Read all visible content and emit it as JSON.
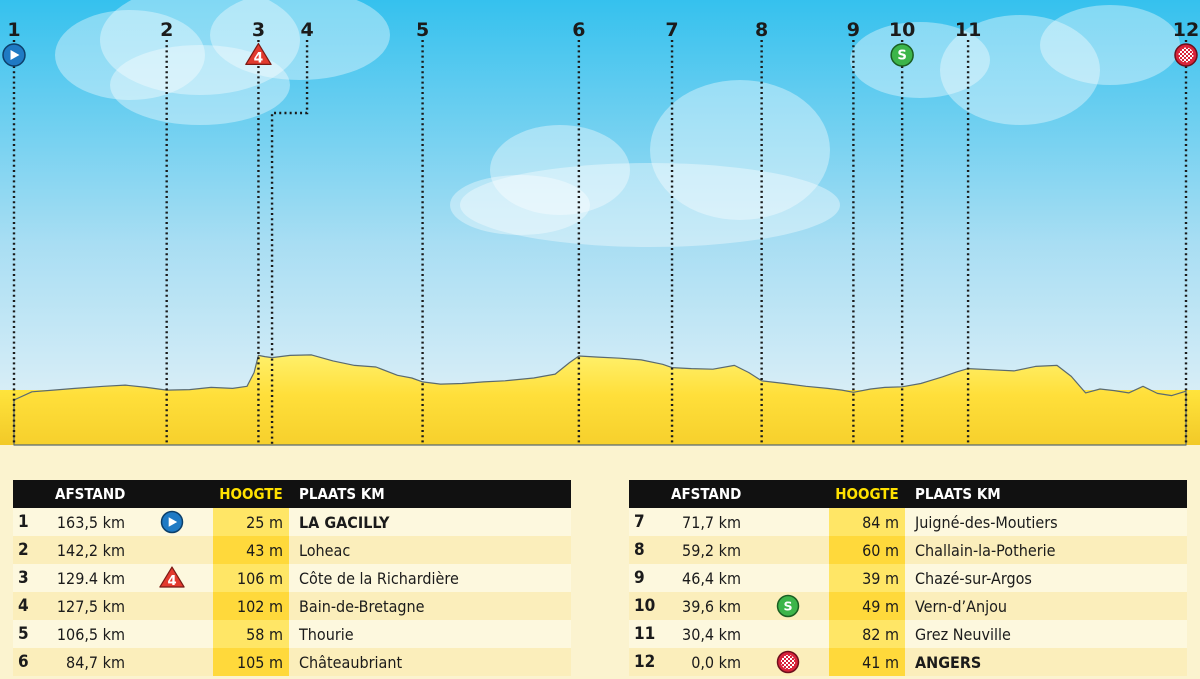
{
  "chart_data": {
    "type": "area",
    "title": "",
    "xlabel": "",
    "ylabel": "",
    "x_unit": "km",
    "xlim": [
      163.5,
      0
    ],
    "ylim": [
      0,
      320
    ],
    "markers": [
      {
        "num": "1",
        "km": 163.5,
        "icon": "start-icon"
      },
      {
        "num": "2",
        "km": 142.2,
        "icon": ""
      },
      {
        "num": "3",
        "km": 129.4,
        "icon": "climb-cat4-icon",
        "climb_cat": "4"
      },
      {
        "num": "4",
        "km": 127.5,
        "icon": ""
      },
      {
        "num": "5",
        "km": 106.5,
        "icon": ""
      },
      {
        "num": "6",
        "km": 84.7,
        "icon": ""
      },
      {
        "num": "7",
        "km": 71.7,
        "icon": ""
      },
      {
        "num": "8",
        "km": 59.2,
        "icon": ""
      },
      {
        "num": "9",
        "km": 46.4,
        "icon": ""
      },
      {
        "num": "10",
        "km": 39.6,
        "icon": "sprint-icon",
        "sprint_label": "S"
      },
      {
        "num": "11",
        "km": 30.4,
        "icon": ""
      },
      {
        "num": "12",
        "km": 0.0,
        "icon": "finish-icon"
      }
    ],
    "profile": [
      [
        163.5,
        25
      ],
      [
        161,
        40
      ],
      [
        158,
        43
      ],
      [
        155,
        46
      ],
      [
        151,
        50
      ],
      [
        148,
        52
      ],
      [
        145,
        48
      ],
      [
        142.2,
        43
      ],
      [
        139,
        44
      ],
      [
        136,
        48
      ],
      [
        133,
        46
      ],
      [
        131,
        50
      ],
      [
        130,
        75
      ],
      [
        129.4,
        106
      ],
      [
        128.5,
        104
      ],
      [
        127.5,
        102
      ],
      [
        125,
        106
      ],
      [
        122,
        107
      ],
      [
        119,
        96
      ],
      [
        116,
        88
      ],
      [
        113,
        85
      ],
      [
        110,
        70
      ],
      [
        108,
        65
      ],
      [
        106.5,
        58
      ],
      [
        104,
        54
      ],
      [
        101,
        55
      ],
      [
        98,
        58
      ],
      [
        95,
        60
      ],
      [
        91,
        65
      ],
      [
        88,
        72
      ],
      [
        86,
        93
      ],
      [
        84.7,
        105
      ],
      [
        82,
        103
      ],
      [
        79,
        101
      ],
      [
        76,
        98
      ],
      [
        73,
        90
      ],
      [
        71.7,
        84
      ],
      [
        69,
        82
      ],
      [
        66,
        81
      ],
      [
        63,
        88
      ],
      [
        61,
        75
      ],
      [
        59.2,
        60
      ],
      [
        56,
        55
      ],
      [
        53,
        50
      ],
      [
        50,
        46
      ],
      [
        48,
        43
      ],
      [
        46.4,
        39
      ],
      [
        44,
        45
      ],
      [
        42,
        48
      ],
      [
        39.6,
        49
      ],
      [
        37,
        55
      ],
      [
        34,
        67
      ],
      [
        32,
        76
      ],
      [
        30.4,
        82
      ],
      [
        27,
        80
      ],
      [
        24,
        78
      ],
      [
        21,
        86
      ],
      [
        18,
        88
      ],
      [
        16,
        68
      ],
      [
        14,
        38
      ],
      [
        12,
        45
      ],
      [
        10,
        42
      ],
      [
        8,
        38
      ],
      [
        6,
        50
      ],
      [
        4,
        37
      ],
      [
        2,
        33
      ],
      [
        0.0,
        41
      ]
    ]
  },
  "table_headers": {
    "afstand": "AFSTAND",
    "hoogte": "HOOGTE",
    "plaats": "PLAATS KM"
  },
  "rows": [
    {
      "num": "1",
      "afstand": "163,5 km",
      "icon": "start-icon",
      "hoogte": "25 m",
      "plaats": "LA GACILLY",
      "bold": true
    },
    {
      "num": "2",
      "afstand": "142,2 km",
      "icon": "",
      "hoogte": "43 m",
      "plaats": "Loheac",
      "bold": false
    },
    {
      "num": "3",
      "afstand": "129.4 km",
      "icon": "climb-cat4-icon",
      "hoogte": "106 m",
      "plaats": "Côte de la Richardière",
      "bold": false
    },
    {
      "num": "4",
      "afstand": "127,5 km",
      "icon": "",
      "hoogte": "102 m",
      "plaats": "Bain-de-Bretagne",
      "bold": false
    },
    {
      "num": "5",
      "afstand": "106,5 km",
      "icon": "",
      "hoogte": "58 m",
      "plaats": "Thourie",
      "bold": false
    },
    {
      "num": "6",
      "afstand": "84,7 km",
      "icon": "",
      "hoogte": "105 m",
      "plaats": "Châteaubriant",
      "bold": false
    },
    {
      "num": "7",
      "afstand": "71,7 km",
      "icon": "",
      "hoogte": "84 m",
      "plaats": "Juigné-des-Moutiers",
      "bold": false
    },
    {
      "num": "8",
      "afstand": "59,2 km",
      "icon": "",
      "hoogte": "60 m",
      "plaats": "Challain-la-Potherie",
      "bold": false
    },
    {
      "num": "9",
      "afstand": "46,4 km",
      "icon": "",
      "hoogte": "39 m",
      "plaats": "Chazé-sur-Argos",
      "bold": false
    },
    {
      "num": "10",
      "afstand": "39,6 km",
      "icon": "sprint-icon",
      "hoogte": "49 m",
      "plaats": "Vern-d’Anjou",
      "bold": false
    },
    {
      "num": "11",
      "afstand": "30,4 km",
      "icon": "",
      "hoogte": "82 m",
      "plaats": "Grez Neuville",
      "bold": false
    },
    {
      "num": "12",
      "afstand": "0,0 km",
      "icon": "finish-icon",
      "hoogte": "41 m",
      "plaats": "ANGERS",
      "bold": true
    }
  ],
  "colors": {
    "sky_top": "#35c1ee",
    "sky_bottom": "#e6f2f8",
    "terrain_top": "#ffe23a",
    "terrain_bottom": "#f3cc2a",
    "start_icon": "#1f7ac4",
    "climb_icon": "#e23a2e",
    "sprint_icon": "#3cb54a",
    "finish_icon": "#d8233a"
  }
}
